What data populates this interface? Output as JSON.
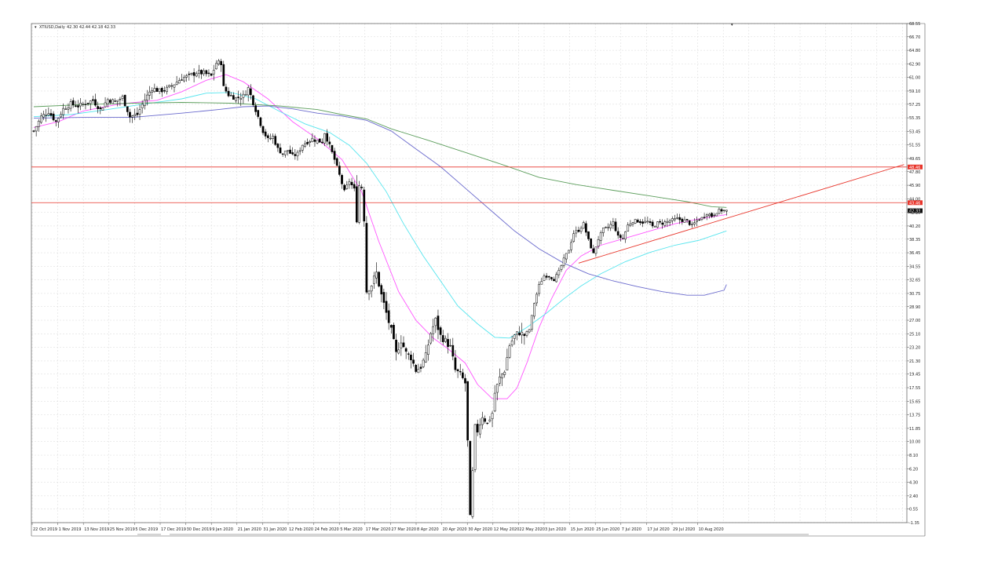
{
  "header": {
    "symbol": "XTIUSD,Daily",
    "ohlc": "42.30 42.44 42.18 42.33"
  },
  "chart_data": {
    "type": "candlestick",
    "symbol": "XTIUSD",
    "timeframe": "Daily",
    "grid": true,
    "ylim": [
      -1.35,
      68.55
    ],
    "y_ticks": [
      "68.55",
      "66.70",
      "64.80",
      "62.90",
      "61.00",
      "59.10",
      "57.25",
      "55.35",
      "53.45",
      "51.55",
      "49.65",
      "47.80",
      "45.90",
      "44.00",
      "42.10",
      "40.20",
      "38.35",
      "36.45",
      "34.55",
      "32.65",
      "30.75",
      "28.90",
      "27.00",
      "25.10",
      "23.20",
      "21.30",
      "19.45",
      "17.55",
      "15.65",
      "13.75",
      "11.85",
      "10.00",
      "8.10",
      "6.20",
      "4.30",
      "2.40",
      "0.55",
      "-1.35"
    ],
    "x_ticks": [
      "22 Oct 2019",
      "1 Nov 2019",
      "13 Nov 2019",
      "25 Nov 2019",
      "5 Dec 2019",
      "17 Dec 2019",
      "30 Dec 2019",
      "9 Jan 2020",
      "21 Jan 2020",
      "31 Jan 2020",
      "12 Feb 2020",
      "24 Feb 2020",
      "5 Mar 2020",
      "17 Mar 2020",
      "27 Mar 2020",
      "8 Apr 2020",
      "20 Apr 2020",
      "30 Apr 2020",
      "12 May 2020",
      "22 May 2020",
      "3 Jun 2020",
      "15 Jun 2020",
      "25 Jun 2020",
      "7 Jul 2020",
      "17 Jul 2020",
      "29 Jul 2020",
      "10 Aug 2020"
    ],
    "close_anchors": [
      [
        0,
        53.5
      ],
      [
        3,
        55.5
      ],
      [
        6,
        56.2
      ],
      [
        9,
        54.8
      ],
      [
        12,
        56.6
      ],
      [
        15,
        57.3
      ],
      [
        18,
        57.0
      ],
      [
        21,
        57.4
      ],
      [
        24,
        57.8
      ],
      [
        27,
        56.5
      ],
      [
        30,
        57.9
      ],
      [
        33,
        57.6
      ],
      [
        36,
        58.2
      ],
      [
        39,
        55.5
      ],
      [
        42,
        55.8
      ],
      [
        45,
        57.9
      ],
      [
        48,
        59.5
      ],
      [
        51,
        59.1
      ],
      [
        54,
        59.4
      ],
      [
        57,
        60.1
      ],
      [
        60,
        60.9
      ],
      [
        63,
        61.2
      ],
      [
        66,
        61.7
      ],
      [
        69,
        61.6
      ],
      [
        72,
        61.2
      ],
      [
        74,
        63.0
      ],
      [
        76,
        63.1
      ],
      [
        77,
        59.6
      ],
      [
        79,
        58.6
      ],
      [
        82,
        58.1
      ],
      [
        85,
        58.4
      ],
      [
        87,
        59.5
      ],
      [
        89,
        57.5
      ],
      [
        91,
        55.5
      ],
      [
        93,
        53.5
      ],
      [
        95,
        52.3
      ],
      [
        97,
        52.7
      ],
      [
        99,
        51.0
      ],
      [
        101,
        50.3
      ],
      [
        103,
        50.8
      ],
      [
        105,
        50.0
      ],
      [
        107,
        50.3
      ],
      [
        109,
        51.6
      ],
      [
        111,
        52.0
      ],
      [
        113,
        52.4
      ],
      [
        115,
        52.1
      ],
      [
        117,
        52.0
      ],
      [
        118,
        53.3
      ],
      [
        120,
        51.4
      ],
      [
        122,
        49.5
      ],
      [
        124,
        47.3
      ],
      [
        126,
        45.0
      ],
      [
        128,
        46.5
      ],
      [
        130,
        45.3
      ],
      [
        131,
        41.3
      ],
      [
        132,
        45.9
      ],
      [
        133,
        45.7
      ],
      [
        134,
        41.3
      ],
      [
        135,
        31.1
      ],
      [
        137,
        32.0
      ],
      [
        139,
        33.6
      ],
      [
        141,
        30.5
      ],
      [
        143,
        28.0
      ],
      [
        145,
        25.5
      ],
      [
        147,
        22.3
      ],
      [
        149,
        24.2
      ],
      [
        151,
        22.4
      ],
      [
        153,
        21.8
      ],
      [
        155,
        20.0
      ],
      [
        157,
        20.5
      ],
      [
        159,
        22.0
      ],
      [
        161,
        25.2
      ],
      [
        163,
        27.0
      ],
      [
        165,
        24.8
      ],
      [
        167,
        24.1
      ],
      [
        169,
        23.2
      ],
      [
        171,
        20.0
      ],
      [
        173,
        19.4
      ],
      [
        175,
        18.2
      ],
      [
        176,
        10.0
      ],
      [
        177,
        -0.6
      ],
      [
        179,
        12.0
      ],
      [
        180,
        11.5
      ],
      [
        182,
        13.6
      ],
      [
        184,
        12.5
      ],
      [
        186,
        14.0
      ],
      [
        187,
        16.8
      ],
      [
        189,
        18.9
      ],
      [
        191,
        20.0
      ],
      [
        193,
        23.5
      ],
      [
        195,
        24.8
      ],
      [
        197,
        25.3
      ],
      [
        199,
        24.9
      ],
      [
        201,
        25.7
      ],
      [
        203,
        29.4
      ],
      [
        205,
        31.9
      ],
      [
        207,
        33.2
      ],
      [
        209,
        33.2
      ],
      [
        211,
        32.7
      ],
      [
        213,
        33.8
      ],
      [
        215,
        35.5
      ],
      [
        217,
        36.9
      ],
      [
        219,
        39.2
      ],
      [
        221,
        39.6
      ],
      [
        223,
        40.5
      ],
      [
        225,
        38.2
      ],
      [
        227,
        36.3
      ],
      [
        229,
        38.4
      ],
      [
        231,
        39.7
      ],
      [
        233,
        40.0
      ],
      [
        235,
        40.7
      ],
      [
        237,
        38.7
      ],
      [
        239,
        38.5
      ],
      [
        241,
        40.3
      ],
      [
        243,
        40.9
      ],
      [
        245,
        40.9
      ],
      [
        247,
        40.7
      ],
      [
        249,
        40.8
      ],
      [
        251,
        40.1
      ],
      [
        253,
        40.6
      ],
      [
        255,
        40.6
      ],
      [
        257,
        40.8
      ],
      [
        259,
        41.0
      ],
      [
        261,
        41.2
      ],
      [
        263,
        41.0
      ],
      [
        265,
        40.9
      ],
      [
        267,
        40.2
      ],
      [
        269,
        41.0
      ],
      [
        271,
        41.3
      ],
      [
        273,
        42.0
      ],
      [
        275,
        41.6
      ],
      [
        277,
        42.2
      ],
      [
        279,
        42.4
      ],
      [
        281,
        42.3
      ]
    ],
    "moving_averages": [
      {
        "period": "fast",
        "color": "#ff55ff",
        "points": [
          [
            0,
            54.0
          ],
          [
            10,
            54.8
          ],
          [
            20,
            56.3
          ],
          [
            35,
            57.3
          ],
          [
            50,
            57.8
          ],
          [
            60,
            59.0
          ],
          [
            70,
            60.6
          ],
          [
            78,
            61.4
          ],
          [
            85,
            60.4
          ],
          [
            95,
            58.0
          ],
          [
            105,
            54.8
          ],
          [
            115,
            52.4
          ],
          [
            125,
            49.5
          ],
          [
            133,
            45.0
          ],
          [
            140,
            38.0
          ],
          [
            148,
            31.0
          ],
          [
            155,
            27.0
          ],
          [
            162,
            24.5
          ],
          [
            168,
            23.0
          ],
          [
            175,
            21.0
          ],
          [
            180,
            18.0
          ],
          [
            186,
            16.0
          ],
          [
            192,
            16.0
          ],
          [
            196,
            17.5
          ],
          [
            200,
            21.0
          ],
          [
            205,
            26.0
          ],
          [
            210,
            30.0
          ],
          [
            216,
            34.0
          ],
          [
            222,
            36.0
          ],
          [
            230,
            37.5
          ],
          [
            240,
            38.5
          ],
          [
            250,
            39.5
          ],
          [
            260,
            40.5
          ],
          [
            270,
            41.2
          ],
          [
            281,
            41.8
          ]
        ]
      },
      {
        "period": "medium",
        "color": "#55e5ee",
        "points": [
          [
            0,
            55.5
          ],
          [
            15,
            55.8
          ],
          [
            30,
            56.5
          ],
          [
            45,
            57.3
          ],
          [
            60,
            58.0
          ],
          [
            70,
            58.8
          ],
          [
            80,
            58.9
          ],
          [
            90,
            58.0
          ],
          [
            100,
            56.2
          ],
          [
            110,
            54.5
          ],
          [
            120,
            53.3
          ],
          [
            128,
            51.5
          ],
          [
            135,
            49.0
          ],
          [
            143,
            45.0
          ],
          [
            150,
            40.5
          ],
          [
            158,
            36.0
          ],
          [
            165,
            32.5
          ],
          [
            172,
            29.0
          ],
          [
            180,
            26.5
          ],
          [
            187,
            24.6
          ],
          [
            193,
            24.5
          ],
          [
            200,
            26.0
          ],
          [
            208,
            28.0
          ],
          [
            215,
            30.0
          ],
          [
            222,
            31.8
          ],
          [
            230,
            33.5
          ],
          [
            240,
            35.2
          ],
          [
            250,
            36.5
          ],
          [
            260,
            37.5
          ],
          [
            270,
            38.2
          ],
          [
            281,
            39.5
          ]
        ]
      },
      {
        "period": "slow",
        "color": "#6a6acd",
        "points": [
          [
            0,
            55.3
          ],
          [
            20,
            55.4
          ],
          [
            40,
            55.4
          ],
          [
            60,
            56.0
          ],
          [
            75,
            56.5
          ],
          [
            85,
            56.9
          ],
          [
            95,
            57.0
          ],
          [
            105,
            56.6
          ],
          [
            115,
            56.0
          ],
          [
            125,
            55.6
          ],
          [
            135,
            55.0
          ],
          [
            145,
            53.5
          ],
          [
            155,
            51.0
          ],
          [
            165,
            48.5
          ],
          [
            175,
            45.5
          ],
          [
            185,
            42.5
          ],
          [
            195,
            39.5
          ],
          [
            205,
            37.0
          ],
          [
            215,
            35.0
          ],
          [
            225,
            33.5
          ],
          [
            235,
            32.5
          ],
          [
            245,
            31.7
          ],
          [
            255,
            31.0
          ],
          [
            265,
            30.5
          ],
          [
            272,
            30.5
          ],
          [
            280,
            31.2
          ],
          [
            281,
            32.0
          ]
        ]
      },
      {
        "period": "long",
        "color": "#5c9e5c",
        "points": [
          [
            0,
            56.9
          ],
          [
            20,
            57.2
          ],
          [
            40,
            57.4
          ],
          [
            60,
            57.5
          ],
          [
            80,
            57.4
          ],
          [
            100,
            57.0
          ],
          [
            115,
            56.5
          ],
          [
            125,
            55.8
          ],
          [
            135,
            55.2
          ],
          [
            145,
            53.8
          ],
          [
            160,
            52.2
          ],
          [
            175,
            50.5
          ],
          [
            190,
            48.8
          ],
          [
            205,
            47.0
          ],
          [
            220,
            46.0
          ],
          [
            235,
            45.2
          ],
          [
            250,
            44.4
          ],
          [
            265,
            43.6
          ],
          [
            275,
            42.9
          ],
          [
            281,
            42.8
          ]
        ]
      }
    ],
    "horizontal_levels": [
      {
        "value": 48.46,
        "label": "48.46",
        "color": "#e8352b"
      },
      {
        "value": 43.46,
        "label": "43.46",
        "color": "#e8352b"
      }
    ],
    "trendline": {
      "color": "#e8352b",
      "from": [
        221,
        35.0
      ],
      "to": [
        353,
        48.8
      ]
    },
    "last_price": {
      "value": 42.33,
      "label": "42.33"
    }
  }
}
